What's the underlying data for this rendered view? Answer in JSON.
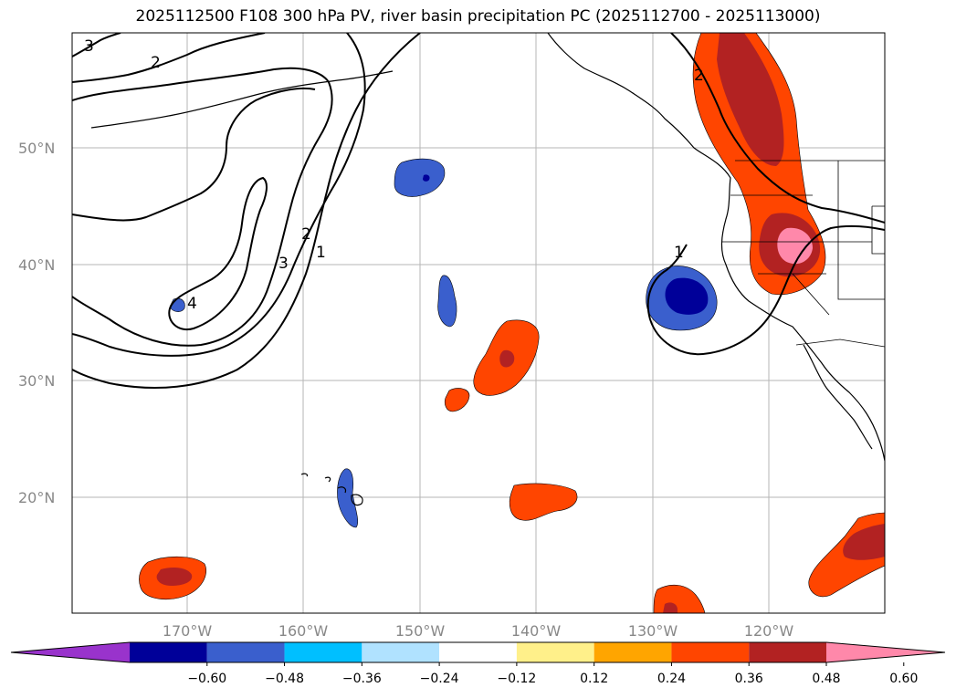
{
  "title": "2025112500 F108 300 hPa PV, river basin precipitation PC (2025112700 - 2025113000)",
  "map": {
    "lat_ticks": [
      "50°N",
      "40°N",
      "30°N",
      "20°N"
    ],
    "lon_ticks": [
      "170°W",
      "160°W",
      "150°W",
      "140°W",
      "130°W",
      "120°W"
    ],
    "contour_labels": [
      "3",
      "2",
      "2",
      "3",
      "1",
      "4",
      "1",
      "2"
    ]
  },
  "colorbar": {
    "colors": [
      "#9933cc",
      "#000099",
      "#3a5fcd",
      "#00bfff",
      "#b0e2ff",
      "#ffffff",
      "#fff08a",
      "#ffa500",
      "#ff4500",
      "#b22222",
      "#ff88aa"
    ],
    "tick_labels": [
      "−0.60",
      "−0.48",
      "−0.36",
      "−0.24",
      "−0.12",
      "0.12",
      "0.24",
      "0.36",
      "0.48",
      "0.60"
    ]
  }
}
